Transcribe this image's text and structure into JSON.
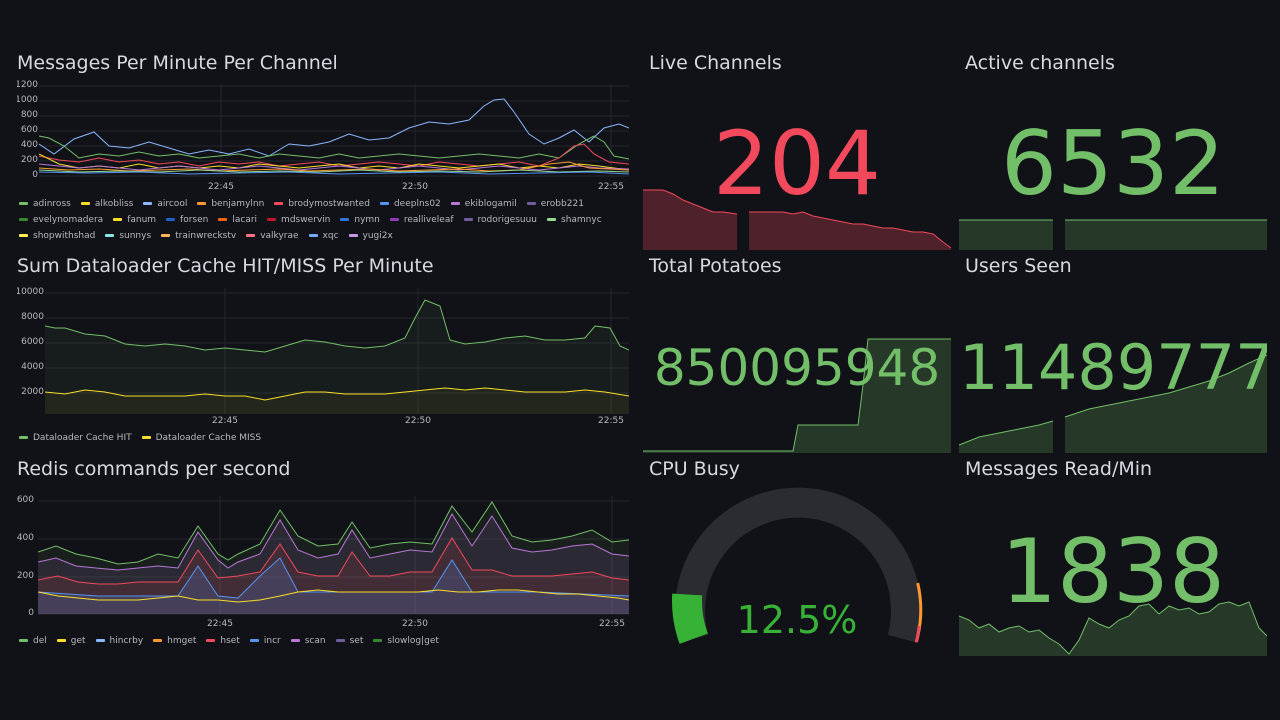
{
  "panels": {
    "messages": {
      "title": "Messages Per Minute Per Channel",
      "yticks": [
        "1200",
        "1000",
        "800",
        "600",
        "400",
        "200",
        "0"
      ],
      "xticks": [
        "22:45",
        "22:50",
        "22:55"
      ],
      "legend": [
        {
          "name": "adinross",
          "color": "#73bf69"
        },
        {
          "name": "alkobliss",
          "color": "#fade2a"
        },
        {
          "name": "aircool",
          "color": "#8ab8ff"
        },
        {
          "name": "benjamylnn",
          "color": "#ff9830"
        },
        {
          "name": "brodymostwanted",
          "color": "#f2495c"
        },
        {
          "name": "deeplns02",
          "color": "#5794f2"
        },
        {
          "name": "ekiblogamil",
          "color": "#b877d9"
        },
        {
          "name": "erobb221",
          "color": "#705da0"
        },
        {
          "name": "evelynomadera",
          "color": "#37872d"
        },
        {
          "name": "fanum",
          "color": "#fade2a"
        },
        {
          "name": "forsen",
          "color": "#1f60c4"
        },
        {
          "name": "lacari",
          "color": "#fa6400"
        },
        {
          "name": "mdswervin",
          "color": "#c4162a"
        },
        {
          "name": "nymn",
          "color": "#3274d9"
        },
        {
          "name": "realliveleaf",
          "color": "#8f3bb8"
        },
        {
          "name": "rodorigesuuu",
          "color": "#705da0"
        },
        {
          "name": "shamnyc",
          "color": "#96d98d"
        },
        {
          "name": "shopwithshad",
          "color": "#ffee52"
        },
        {
          "name": "sunnys",
          "color": "#8ae6e6"
        },
        {
          "name": "trainwreckstv",
          "color": "#ffb357"
        },
        {
          "name": "valkyrae",
          "color": "#ff7383"
        },
        {
          "name": "xqc",
          "color": "#73aaff"
        },
        {
          "name": "yugi2x",
          "color": "#ca95e5"
        }
      ]
    },
    "dataloader": {
      "title": "Sum Dataloader Cache HIT/MISS Per Minute",
      "yticks": [
        "10000",
        "8000",
        "6000",
        "4000",
        "2000"
      ],
      "xticks": [
        "22:45",
        "22:50",
        "22:55"
      ],
      "legend": [
        {
          "name": "Dataloader Cache HIT",
          "color": "#73bf69"
        },
        {
          "name": "Dataloader Cache MISS",
          "color": "#fade2a"
        }
      ]
    },
    "redis": {
      "title": "Redis commands per second",
      "yticks": [
        "600",
        "400",
        "200",
        "0"
      ],
      "xticks": [
        "22:45",
        "22:50",
        "22:55"
      ],
      "legend": [
        {
          "name": "del",
          "color": "#73bf69"
        },
        {
          "name": "get",
          "color": "#fade2a"
        },
        {
          "name": "hincrby",
          "color": "#8ab8ff"
        },
        {
          "name": "hmget",
          "color": "#ff9830"
        },
        {
          "name": "hset",
          "color": "#f2495c"
        },
        {
          "name": "incr",
          "color": "#5794f2"
        },
        {
          "name": "scan",
          "color": "#b877d9"
        },
        {
          "name": "set",
          "color": "#705da0"
        },
        {
          "name": "slowlog|get",
          "color": "#37872d"
        }
      ]
    },
    "live_channels": {
      "title": "Live Channels",
      "value": "204",
      "color": "#f2495c"
    },
    "active_channels": {
      "title": "Active channels",
      "value": "6532",
      "color": "#73bf69"
    },
    "total_potatoes": {
      "title": "Total Potatoes",
      "value": "850095948",
      "color": "#73bf69"
    },
    "users_seen": {
      "title": "Users Seen",
      "value": "11489777",
      "color": "#73bf69"
    },
    "cpu_busy": {
      "title": "CPU Busy",
      "value": "12.5%",
      "percent": 12.5,
      "color": "#37b236"
    },
    "messages_read": {
      "title": "Messages Read/Min",
      "value": "1838",
      "color": "#73bf69"
    }
  }
}
